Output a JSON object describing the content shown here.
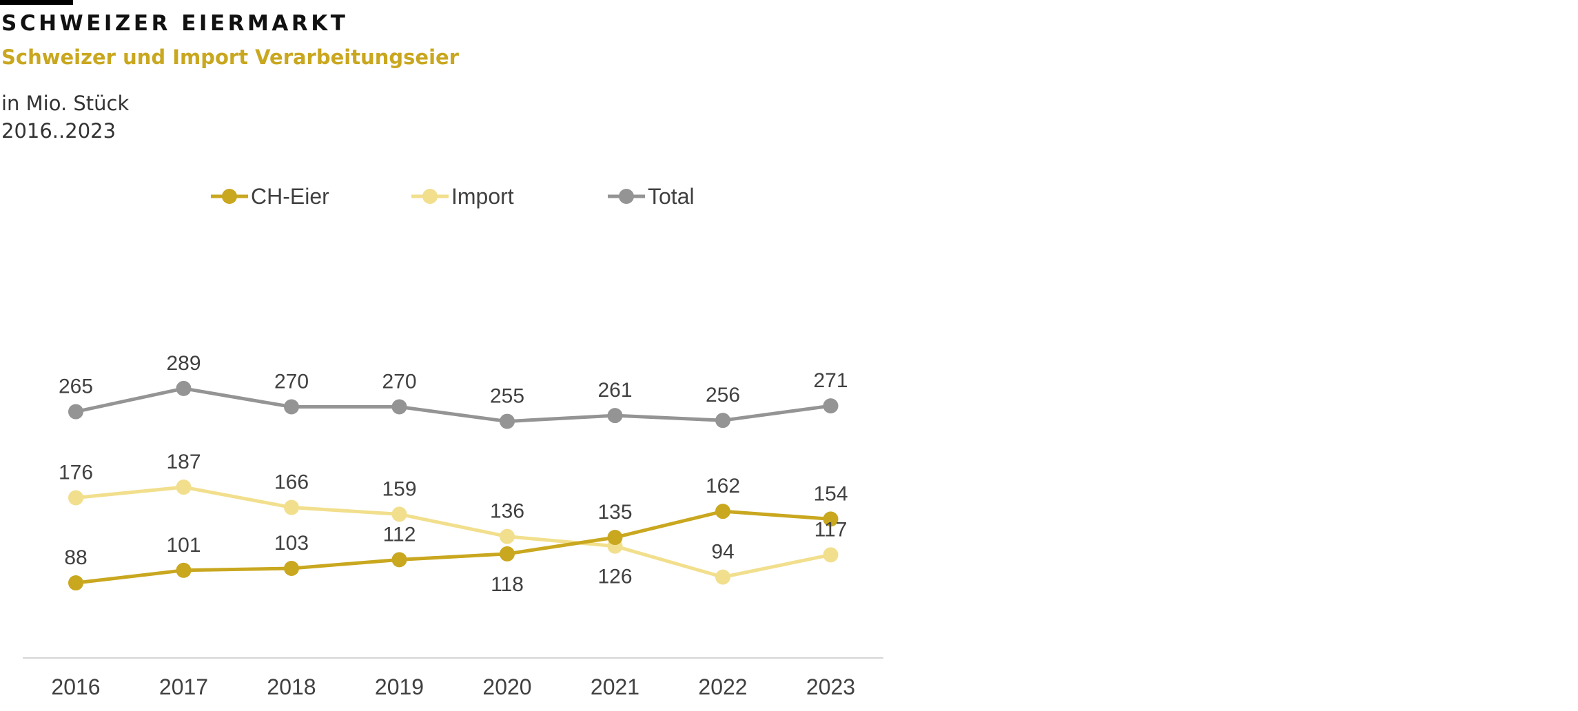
{
  "header": {
    "title": "SCHWEIZER EIERMARKT",
    "subtitle": "Schweizer und Import Verarbeitungseier",
    "unit": "in Mio. Stück",
    "period": "2016..2023"
  },
  "colors": {
    "ch": "#c9a71f",
    "import": "#f2df8d",
    "total": "#949494",
    "axis": "#d6d6d6",
    "label": "#404040"
  },
  "chart_data": {
    "type": "line",
    "x": [
      "2016",
      "2017",
      "2018",
      "2019",
      "2020",
      "2021",
      "2022",
      "2023"
    ],
    "series": [
      {
        "name": "CH-Eier",
        "key": "ch",
        "values": [
          88,
          101,
          103,
          112,
          118,
          135,
          162,
          154
        ]
      },
      {
        "name": "Import",
        "key": "import",
        "values": [
          176,
          187,
          166,
          159,
          136,
          126,
          94,
          117
        ]
      },
      {
        "name": "Total",
        "key": "total",
        "values": [
          265,
          289,
          270,
          270,
          255,
          261,
          256,
          271
        ]
      }
    ],
    "label_position": {
      "ch": [
        "above",
        "above",
        "above",
        "above",
        "below",
        "above",
        "above",
        "above"
      ],
      "import": [
        "above",
        "above",
        "above",
        "above",
        "above",
        "below",
        "above",
        "above"
      ],
      "total": [
        "above",
        "above",
        "above",
        "above",
        "above",
        "above",
        "above",
        "above"
      ]
    },
    "legend": "top",
    "grid": false
  }
}
